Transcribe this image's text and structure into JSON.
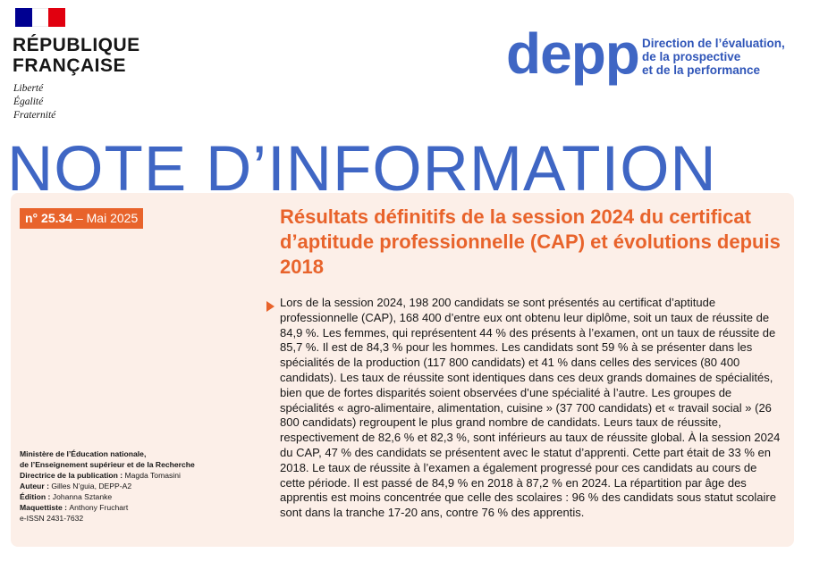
{
  "header": {
    "republic_line1": "RÉPUBLIQUE",
    "republic_line2": "FRANÇAISE",
    "motto": [
      "Liberté",
      "Égalité",
      "Fraternité"
    ],
    "depp_logo": "depp",
    "depp_text": [
      "Direction de l’évaluation,",
      "de la prospective",
      "et de la performance"
    ]
  },
  "title": "NOTE  D’INFORMATION",
  "badge": {
    "number": "n° 25.34",
    "date": " – Mai 2025"
  },
  "headline": "Résultats définitifs de la session 2024 du certificat d’aptitude professionnelle (CAP) et évolutions depuis 2018",
  "summary": "Lors de la session 2024, 198 200 candidats se sont présentés au certificat d’aptitude professionnelle (CAP), 168 400 d’entre eux ont obtenu leur diplôme, soit un taux de réussite de 84,9 %. Les femmes, qui représentent 44 % des présents à l’examen, ont un taux de réussite de 85,7 %. Il est de 84,3 % pour les hommes. Les candidats sont 59 % à se présenter dans les spécialités de la production (117 800 candidats) et 41 % dans celles des services (80 400 candidats). Les taux de réussite sont identiques dans ces deux grands domaines de spécialités, bien que de fortes disparités soient observées d’une spécialité à l’autre. Les groupes de spécialités « agro-alimentaire, alimentation, cuisine » (37 700 candidats) et « travail social » (26 800 candidats) regroupent le plus grand nombre de candidats. Leurs taux de réussite, respectivement de 82,6 % et 82,3 %, sont inférieurs au taux de réussite global. À la session 2024 du CAP, 47 % des candidats se présentent avec le statut d’apprenti. Cette part était de 33 % en 2018. Le taux de réussite à l’examen a également progressé pour ces candidats au cours de cette période. Il est passé de 84,9 % en 2018 à 87,2 % en 2024. La répartition par âge des apprentis est moins concentrée que celle des scolaires : 96 % des candidats sous statut scolaire sont dans la tranche 17-20 ans, contre 76 % des apprentis.",
  "credits": {
    "ministry_line1": "Ministère de l’Éducation nationale,",
    "ministry_line2": "de l’Enseignement supérieur et de la Recherche",
    "publication_label": "Directrice de la publication : ",
    "publication_name": "Magda Tomasini",
    "author_label": "Auteur : ",
    "author_name": "Gilles N’guia, DEPP-A2",
    "edition_label": "Édition : ",
    "edition_name": "Johanna Sztanke",
    "layout_label": "Maquettiste : ",
    "layout_name": "Anthony Fruchart",
    "issn": "e-ISSN 2431-7632"
  }
}
